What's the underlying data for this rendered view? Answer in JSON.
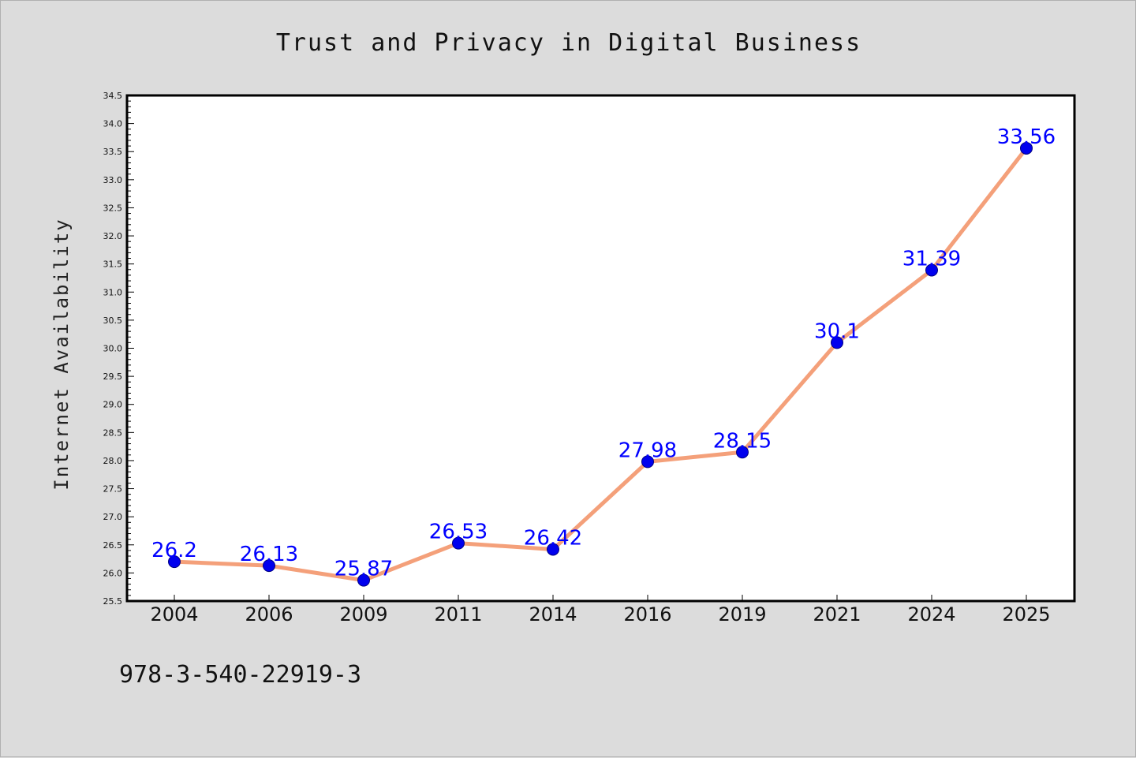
{
  "chart_data": {
    "type": "line",
    "title": "Trust and Privacy in Digital Business",
    "xlabel": "",
    "ylabel": "Internet Availability",
    "categories": [
      "2004",
      "2006",
      "2009",
      "2011",
      "2014",
      "2016",
      "2019",
      "2021",
      "2024",
      "2025"
    ],
    "series": [
      {
        "values": [
          26.2,
          26.13,
          25.87,
          26.53,
          26.42,
          27.98,
          28.15,
          30.1,
          31.39,
          33.56
        ]
      }
    ],
    "data_labels": [
      "26.2",
      "26.13",
      "25.87",
      "26.53",
      "26.42",
      "27.98",
      "28.15",
      "30.1",
      "31.39",
      "33.56"
    ],
    "ylim": [
      25.5,
      34.5
    ],
    "ytick_step": 0.5,
    "yticks": [
      "25.5",
      "26.0",
      "26.5",
      "27.0",
      "27.5",
      "28.0",
      "28.5",
      "29.0",
      "29.5",
      "30.0",
      "30.5",
      "31.0",
      "31.5",
      "32.0",
      "32.5",
      "33.0",
      "33.5",
      "34.0",
      "34.5"
    ],
    "grid": false,
    "colors": {
      "line": "#f4a07a",
      "marker": "#0000ee",
      "marker_edge": "#000080",
      "label": "#0000ff",
      "background": "#dcdcdc",
      "plot_area": "#ffffff"
    }
  },
  "footnote": "978-3-540-22919-3"
}
